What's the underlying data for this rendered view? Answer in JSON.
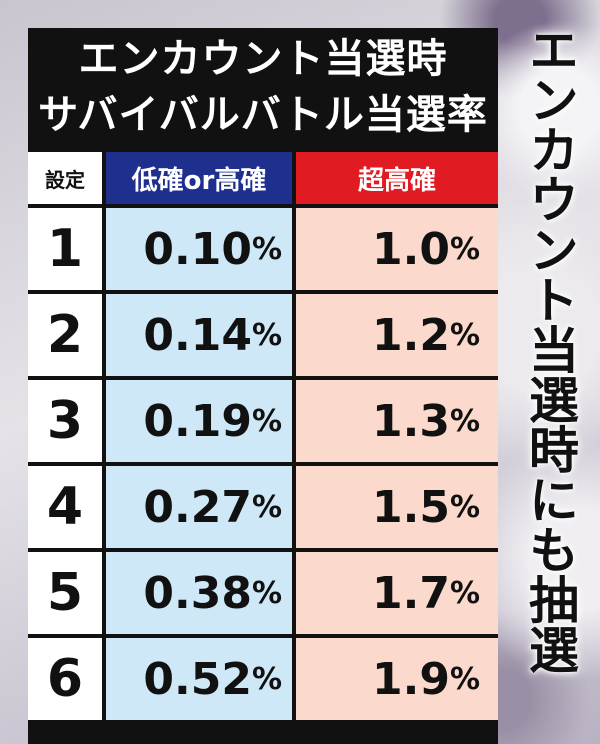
{
  "title": {
    "line1": "エンカウント当選時",
    "line2": "サバイバルバトル当選率"
  },
  "table": {
    "headers": {
      "setting": "設定",
      "low_high": "低確or高確",
      "super_high": "超高確"
    },
    "rows": [
      {
        "setting": "1",
        "low_high": "0.10",
        "super_high": "1.0"
      },
      {
        "setting": "2",
        "low_high": "0.14",
        "super_high": "1.2"
      },
      {
        "setting": "3",
        "low_high": "0.19",
        "super_high": "1.3"
      },
      {
        "setting": "4",
        "low_high": "0.27",
        "super_high": "1.5"
      },
      {
        "setting": "5",
        "low_high": "0.38",
        "super_high": "1.7"
      },
      {
        "setting": "6",
        "low_high": "0.52",
        "super_high": "1.9"
      }
    ],
    "unit": "%"
  },
  "side_text": "エンカウント当選時にも抽選",
  "colors": {
    "panel": "#111111",
    "header_low": "#1f2f8e",
    "header_super": "#e11b22",
    "cell_low": "#cfe8f7",
    "cell_super": "#fbd9cc"
  }
}
